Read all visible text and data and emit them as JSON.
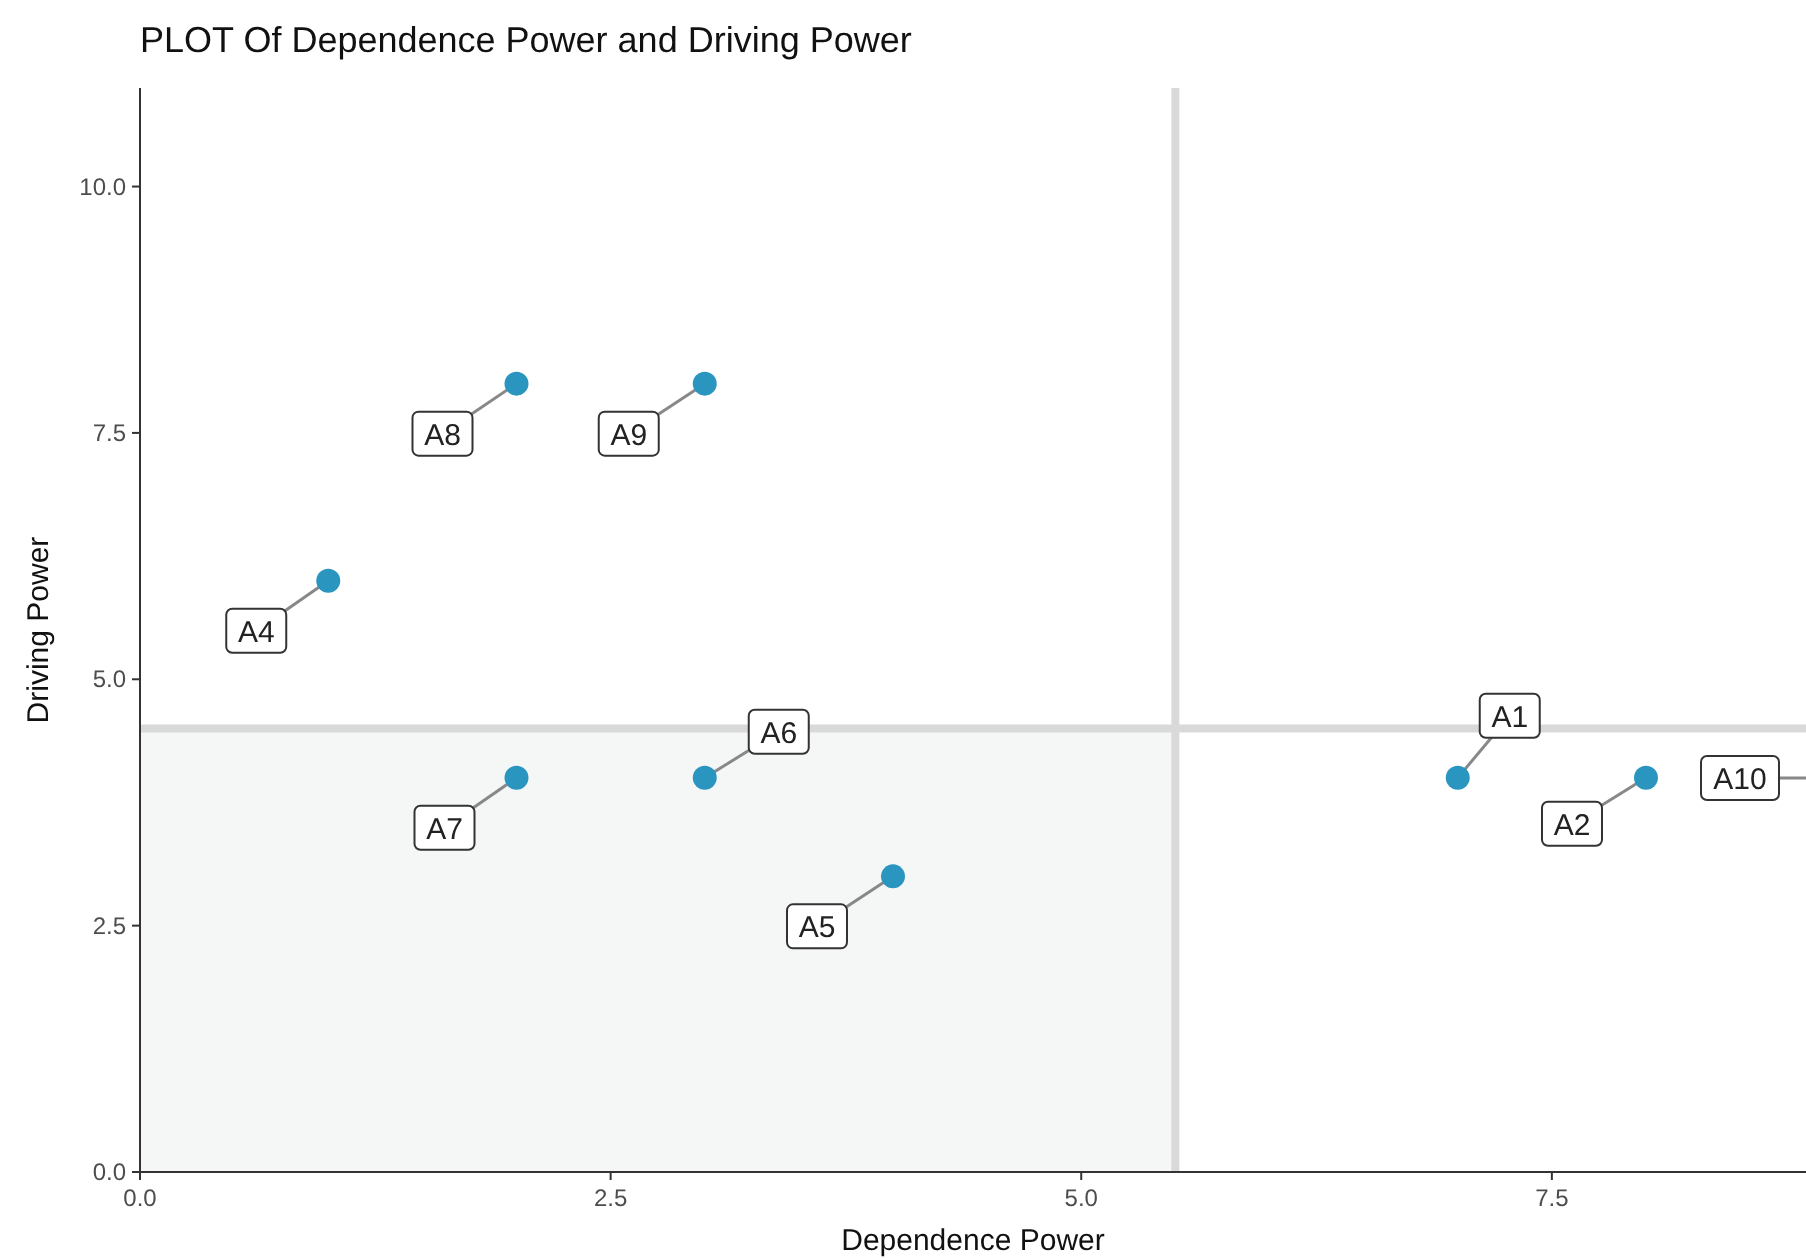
{
  "chart_data": {
    "type": "scatter",
    "title": "PLOT Of Dependence Power and Driving Power",
    "xlabel": "Dependence Power",
    "ylabel": "Driving Power",
    "xlim": [
      0,
      8.85
    ],
    "ylim": [
      0,
      11
    ],
    "xticks": [
      {
        "value": 0,
        "label": "0.0"
      },
      {
        "value": 2.5,
        "label": "2.5"
      },
      {
        "value": 5,
        "label": "5.0"
      },
      {
        "value": 7.5,
        "label": "7.5"
      }
    ],
    "yticks": [
      {
        "value": 0,
        "label": "0.0"
      },
      {
        "value": 2.5,
        "label": "2.5"
      },
      {
        "value": 5,
        "label": "5.0"
      },
      {
        "value": 7.5,
        "label": "7.5"
      },
      {
        "value": 10,
        "label": "10.0"
      }
    ],
    "series": [
      {
        "color": "#2a96c0",
        "x": [
          7,
          8,
          1,
          4,
          3,
          2,
          2,
          3
        ],
        "values": [
          4,
          4,
          6,
          3,
          4,
          4,
          8,
          8
        ]
      }
    ],
    "marker": "circle",
    "grid": false,
    "ref_lines": [
      {
        "axis": "x",
        "value": 5.5,
        "color": "#d9d9d9"
      },
      {
        "axis": "y",
        "value": 4.5,
        "color": "#d9d9d9"
      }
    ],
    "bands": [
      {
        "axis": "y",
        "from": 0,
        "to": 4.5,
        "color": "#f5f7f7"
      }
    ],
    "annotations": [
      {
        "text": "A1",
        "x": 7,
        "y": 4
      },
      {
        "text": "A2",
        "x": 8,
        "y": 4
      },
      {
        "text": "A4",
        "x": 1,
        "y": 6
      },
      {
        "text": "A5",
        "x": 4,
        "y": 3
      },
      {
        "text": "A6",
        "x": 3,
        "y": 4
      },
      {
        "text": "A7",
        "x": 2,
        "y": 4
      },
      {
        "text": "A8",
        "x": 2,
        "y": 8
      },
      {
        "text": "A9",
        "x": 3,
        "y": 8
      },
      "A10"
    ]
  }
}
